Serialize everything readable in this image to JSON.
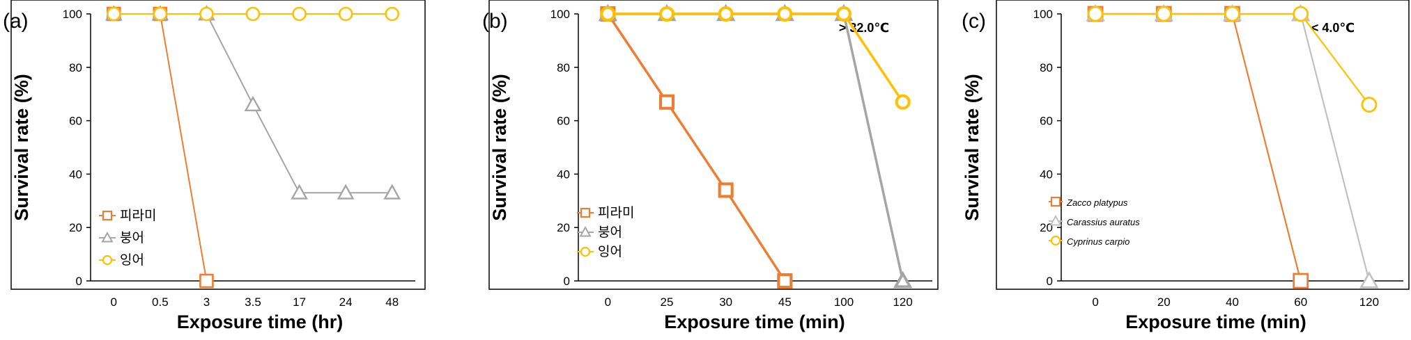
{
  "chart_data": [
    {
      "type": "line",
      "panel_label": "(a)",
      "xlabel": "Exposure time (hr)",
      "ylabel": "Survival rate (%)",
      "categories": [
        "0",
        "0.5",
        "3",
        "3.5",
        "17",
        "24",
        "48"
      ],
      "ylim": [
        0,
        100
      ],
      "y_ticks": [
        "0",
        "20",
        "40",
        "60",
        "80",
        "100"
      ],
      "annotation": "",
      "legend_position": "bottom-left",
      "series": [
        {
          "name": "피라미",
          "marker": "square",
          "color": "#ED7D31",
          "values": [
            100,
            100,
            0,
            null,
            null,
            null,
            null
          ]
        },
        {
          "name": "붕어",
          "marker": "triangle",
          "color": "#A5A5A5",
          "values": [
            100,
            100,
            100,
            66,
            33,
            33,
            33
          ]
        },
        {
          "name": "잉어",
          "marker": "circle",
          "color": "#FFC000",
          "values": [
            100,
            100,
            100,
            100,
            100,
            100,
            100
          ]
        }
      ]
    },
    {
      "type": "line",
      "panel_label": "(b)",
      "xlabel": "Exposure time (min)",
      "ylabel": "Survival rate (%)",
      "categories": [
        "0",
        "25",
        "30",
        "45",
        "100",
        "120"
      ],
      "ylim": [
        0,
        100
      ],
      "y_ticks": [
        "0",
        "20",
        "40",
        "60",
        "80",
        "100"
      ],
      "annotation": "> 32.0℃",
      "legend_position": "bottom-left",
      "series": [
        {
          "name": "피라미",
          "marker": "square",
          "color": "#ED7D31",
          "values": [
            100,
            67,
            34,
            0,
            null,
            null
          ]
        },
        {
          "name": "붕어",
          "marker": "triangle",
          "color": "#A5A5A5",
          "values": [
            100,
            100,
            100,
            100,
            100,
            0
          ]
        },
        {
          "name": "잉어",
          "marker": "circle",
          "color": "#FFC000",
          "values": [
            100,
            100,
            100,
            100,
            100,
            67
          ]
        }
      ]
    },
    {
      "type": "line",
      "panel_label": "(c)",
      "xlabel": "Exposure time (min)",
      "ylabel": "Survival rate (%)",
      "categories": [
        "0",
        "20",
        "40",
        "60",
        "120"
      ],
      "ylim": [
        0,
        100
      ],
      "y_ticks": [
        "0",
        "20",
        "40",
        "60",
        "80",
        "100"
      ],
      "annotation": "< 4.0℃",
      "legend_position": "bottom-left",
      "series": [
        {
          "name": "Zacco platypus",
          "marker": "square",
          "color": "#ED7D31",
          "values": [
            100,
            100,
            100,
            0,
            null
          ]
        },
        {
          "name": "Carassius auratus",
          "marker": "triangle",
          "color": "#C0C0C0",
          "values": [
            100,
            100,
            100,
            100,
            0
          ]
        },
        {
          "name": "Cyprinus carpio",
          "marker": "circle",
          "color": "#FFC000",
          "values": [
            100,
            100,
            100,
            100,
            66
          ]
        }
      ]
    }
  ]
}
